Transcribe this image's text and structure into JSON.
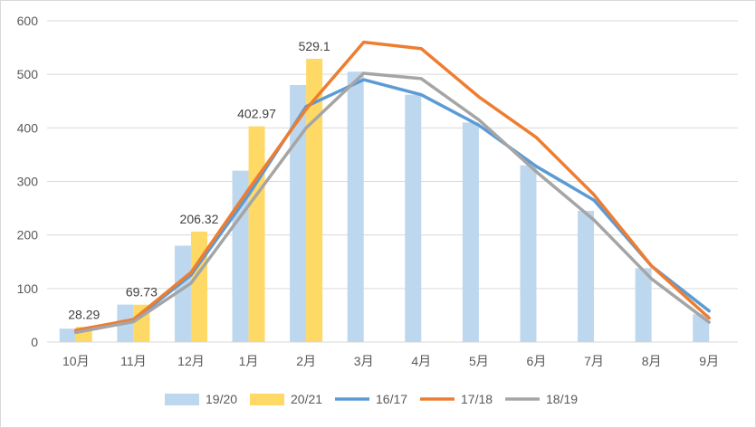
{
  "chart_data": {
    "type": "bar+line",
    "title": "",
    "xlabel": "",
    "ylabel": "",
    "ylim": [
      0,
      600
    ],
    "yticks": [
      0,
      100,
      200,
      300,
      400,
      500,
      600
    ],
    "grid": true,
    "legend_position": "bottom",
    "categories": [
      "10月",
      "11月",
      "12月",
      "1月",
      "2月",
      "3月",
      "4月",
      "5月",
      "6月",
      "7月",
      "8月",
      "9月"
    ],
    "bar_series": [
      {
        "name": "19/20",
        "color": "#bdd7ee",
        "values": [
          25,
          70,
          180,
          320,
          480,
          505,
          462,
          410,
          330,
          245,
          138,
          52
        ]
      },
      {
        "name": "20/21",
        "color": "#ffd966",
        "values": [
          28.29,
          69.73,
          206.32,
          402.97,
          529.1,
          null,
          null,
          null,
          null,
          null,
          null,
          null
        ]
      }
    ],
    "line_series": [
      {
        "name": "16/17",
        "color": "#5b9bd5",
        "values": [
          20,
          40,
          125,
          275,
          440,
          490,
          462,
          405,
          328,
          265,
          142,
          58
        ]
      },
      {
        "name": "17/18",
        "color": "#ed7d31",
        "values": [
          22,
          42,
          130,
          285,
          435,
          560,
          548,
          458,
          382,
          275,
          142,
          45
        ]
      },
      {
        "name": "18/19",
        "color": "#a5a5a5",
        "values": [
          18,
          38,
          110,
          255,
          400,
          502,
          492,
          415,
          318,
          228,
          118,
          37
        ]
      }
    ],
    "data_labels": [
      "28.29",
      "69.73",
      "206.32",
      "402.97",
      "529.1"
    ]
  }
}
